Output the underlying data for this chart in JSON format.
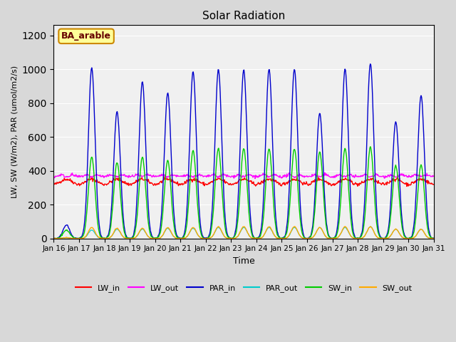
{
  "title": "Solar Radiation",
  "xlabel": "Time",
  "ylabel": "LW, SW (W/m2), PAR (umol/m2/s)",
  "site_label": "BA_arable",
  "ylim": [
    0,
    1260
  ],
  "yticks": [
    0,
    200,
    400,
    600,
    800,
    1000,
    1200
  ],
  "xtick_labels": [
    "Jan 16",
    "Jan 17",
    "Jan 18",
    "Jan 19",
    "Jan 20",
    "Jan 21",
    "Jan 22",
    "Jan 23",
    "Jan 24",
    "Jan 25",
    "Jan 26",
    "Jan 27",
    "Jan 28",
    "Jan 29",
    "Jan 30",
    "Jan 31"
  ],
  "colors": {
    "LW_in": "#ff0000",
    "LW_out": "#ff00ff",
    "PAR_in": "#0000cc",
    "PAR_out": "#00cccc",
    "SW_in": "#00cc00",
    "SW_out": "#ffaa00"
  },
  "fig_bg_color": "#d8d8d8",
  "plot_bg_color": "#f0f0f0",
  "par_in_peaks": [
    80,
    1010,
    750,
    925,
    860,
    985,
    1000,
    995,
    1000,
    1000,
    740,
    1000,
    1035,
    690,
    845
  ],
  "par_out_peaks": [
    5,
    50,
    55,
    55,
    60,
    60,
    65,
    65,
    65,
    65,
    65,
    65,
    70,
    55,
    55
  ],
  "sw_in_peaks": [
    50,
    480,
    450,
    480,
    460,
    520,
    530,
    530,
    530,
    530,
    510,
    530,
    540,
    430,
    435
  ],
  "sw_out_peaks": [
    5,
    65,
    60,
    60,
    65,
    65,
    70,
    70,
    70,
    70,
    65,
    70,
    70,
    55,
    55
  ],
  "lw_in_base": 335,
  "lw_out_base": 375,
  "n_days": 15,
  "pts_per_day": 48
}
